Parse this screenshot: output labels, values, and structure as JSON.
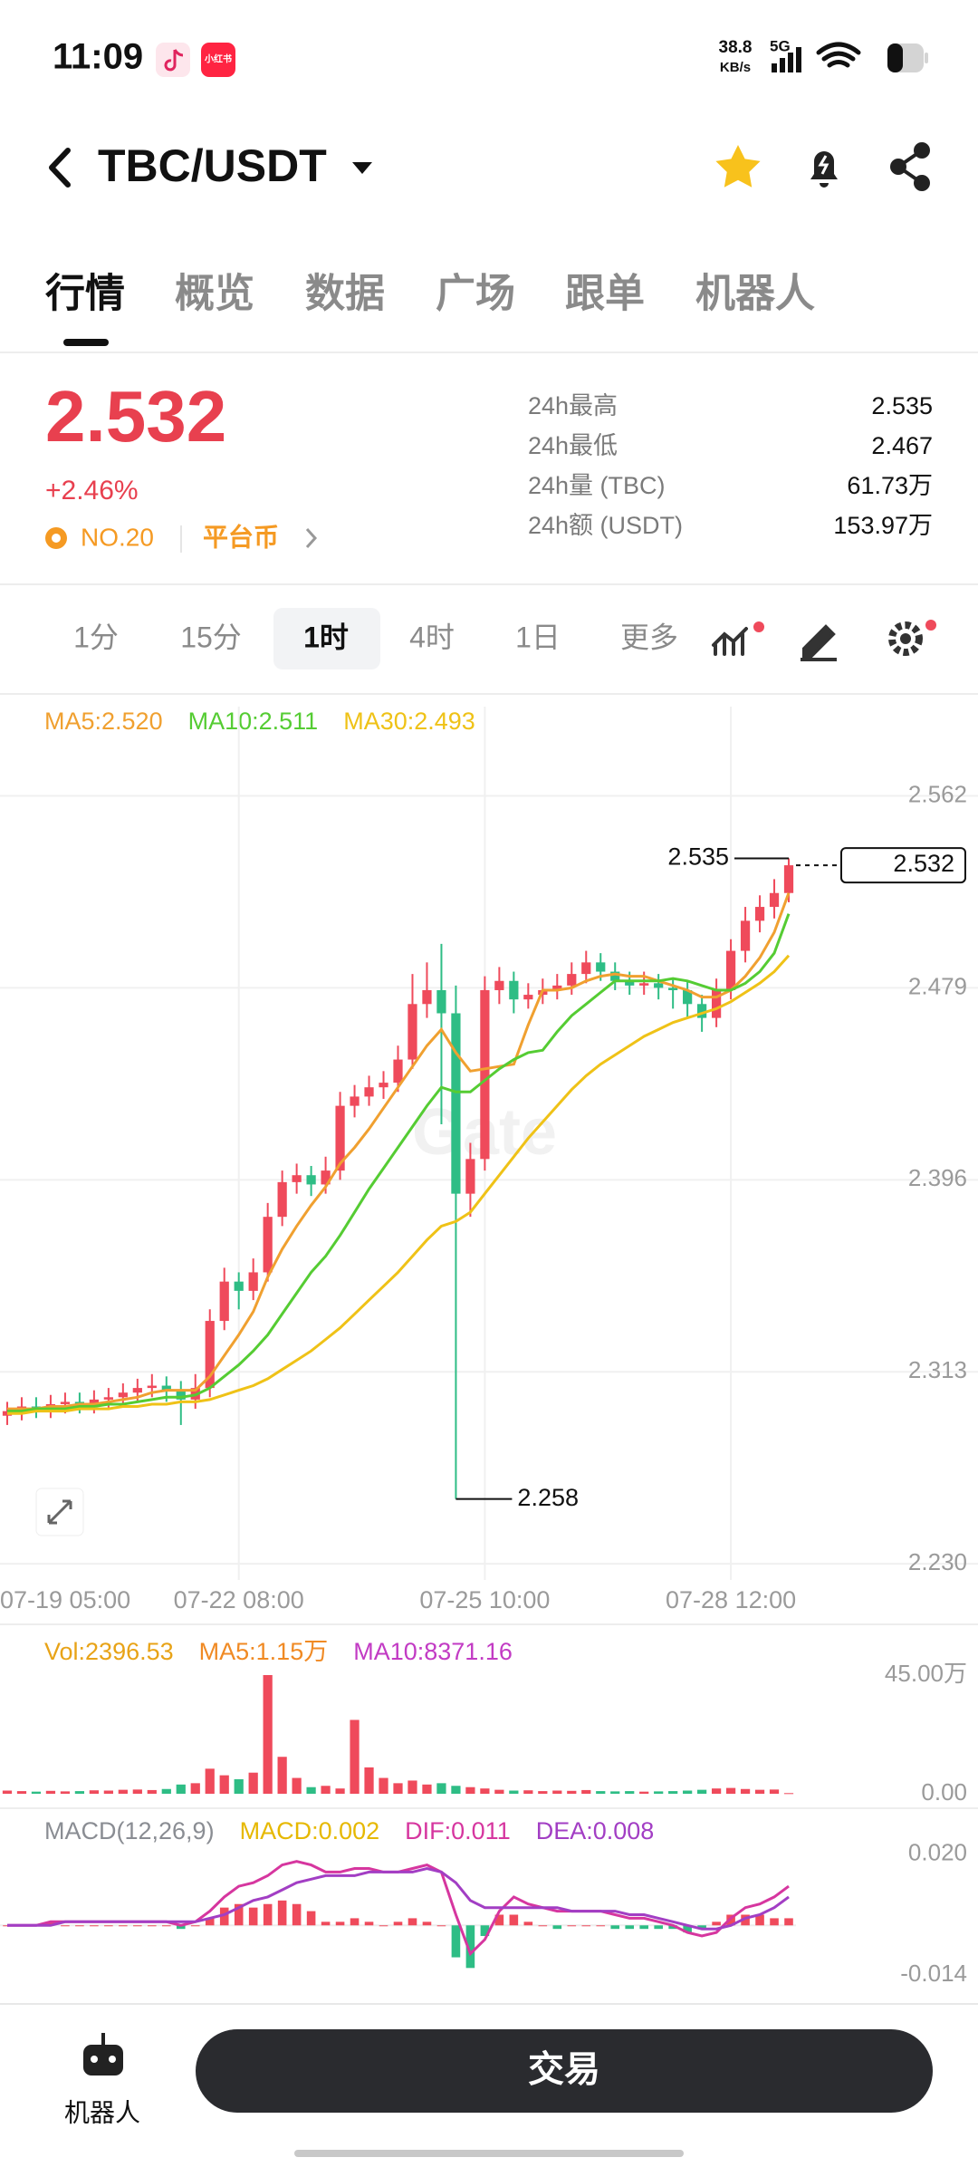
{
  "status_bar": {
    "time": "11:09",
    "app_badge": "小红书",
    "net_speed": "38.8",
    "net_unit": "KB/s",
    "network": "5G"
  },
  "header": {
    "pair": "TBC/USDT"
  },
  "tabs": [
    "行情",
    "概览",
    "数据",
    "广场",
    "跟单",
    "机器人"
  ],
  "ticker": {
    "price": "2.532",
    "change": "+2.46%",
    "rank": "NO.20",
    "tag": "平台币",
    "stats": [
      {
        "label": "24h最高",
        "value": "2.535"
      },
      {
        "label": "24h最低",
        "value": "2.467"
      },
      {
        "label": "24h量 (TBC)",
        "value": "61.73万"
      },
      {
        "label": "24h额 (USDT)",
        "value": "153.97万"
      }
    ]
  },
  "intervals": [
    "1分",
    "15分",
    "1时",
    "4时",
    "1日",
    "更多"
  ],
  "watermark": "Gate",
  "chart_data": [
    {
      "type": "candlestick",
      "categories": [
        "07-19 05:00",
        null,
        null,
        null,
        null,
        null,
        null,
        null,
        null,
        null,
        null,
        null,
        null,
        null,
        null,
        null,
        "07-22 08:00",
        null,
        null,
        null,
        null,
        null,
        null,
        null,
        null,
        null,
        null,
        null,
        null,
        null,
        null,
        null,
        null,
        "07-25 10:00",
        null,
        null,
        null,
        null,
        null,
        null,
        null,
        null,
        null,
        null,
        null,
        null,
        null,
        null,
        null,
        null,
        "07-28 12:00",
        null,
        null,
        null,
        null
      ],
      "ohlc": [
        [
          2.294,
          2.3,
          2.29,
          2.296
        ],
        [
          2.296,
          2.302,
          2.292,
          2.298
        ],
        [
          2.298,
          2.302,
          2.293,
          2.297
        ],
        [
          2.297,
          2.303,
          2.293,
          2.299
        ],
        [
          2.299,
          2.304,
          2.295,
          2.3
        ],
        [
          2.3,
          2.304,
          2.295,
          2.299
        ],
        [
          2.299,
          2.305,
          2.295,
          2.301
        ],
        [
          2.301,
          2.306,
          2.297,
          2.302
        ],
        [
          2.302,
          2.308,
          2.298,
          2.304
        ],
        [
          2.304,
          2.31,
          2.3,
          2.306
        ],
        [
          2.306,
          2.312,
          2.302,
          2.307
        ],
        [
          2.307,
          2.311,
          2.3,
          2.305
        ],
        [
          2.305,
          2.309,
          2.29,
          2.301
        ],
        [
          2.301,
          2.312,
          2.297,
          2.306
        ],
        [
          2.306,
          2.34,
          2.302,
          2.335
        ],
        [
          2.335,
          2.358,
          2.331,
          2.352
        ],
        [
          2.352,
          2.356,
          2.34,
          2.348
        ],
        [
          2.348,
          2.362,
          2.344,
          2.356
        ],
        [
          2.356,
          2.386,
          2.352,
          2.38
        ],
        [
          2.38,
          2.4,
          2.376,
          2.395
        ],
        [
          2.395,
          2.403,
          2.39,
          2.398
        ],
        [
          2.398,
          2.402,
          2.389,
          2.394
        ],
        [
          2.394,
          2.406,
          2.39,
          2.4
        ],
        [
          2.4,
          2.434,
          2.396,
          2.428
        ],
        [
          2.428,
          2.437,
          2.423,
          2.432
        ],
        [
          2.432,
          2.441,
          2.428,
          2.436
        ],
        [
          2.436,
          2.443,
          2.431,
          2.438
        ],
        [
          2.438,
          2.454,
          2.434,
          2.448
        ],
        [
          2.448,
          2.485,
          2.444,
          2.472
        ],
        [
          2.472,
          2.49,
          2.466,
          2.478
        ],
        [
          2.478,
          2.498,
          2.42,
          2.468
        ],
        [
          2.468,
          2.48,
          2.258,
          2.39
        ],
        [
          2.39,
          2.412,
          2.38,
          2.405
        ],
        [
          2.405,
          2.484,
          2.4,
          2.478
        ],
        [
          2.478,
          2.488,
          2.472,
          2.482
        ],
        [
          2.482,
          2.486,
          2.468,
          2.474
        ],
        [
          2.474,
          2.481,
          2.47,
          2.476
        ],
        [
          2.476,
          2.483,
          2.472,
          2.478
        ],
        [
          2.478,
          2.485,
          2.474,
          2.48
        ],
        [
          2.48,
          2.49,
          2.476,
          2.485
        ],
        [
          2.485,
          2.495,
          2.481,
          2.49
        ],
        [
          2.49,
          2.494,
          2.482,
          2.486
        ],
        [
          2.486,
          2.49,
          2.478,
          2.482
        ],
        [
          2.482,
          2.486,
          2.476,
          2.48
        ],
        [
          2.48,
          2.486,
          2.476,
          2.481
        ],
        [
          2.481,
          2.485,
          2.474,
          2.479
        ],
        [
          2.479,
          2.483,
          2.47,
          2.478
        ],
        [
          2.478,
          2.482,
          2.466,
          2.472
        ],
        [
          2.472,
          2.476,
          2.46,
          2.466
        ],
        [
          2.466,
          2.483,
          2.462,
          2.478
        ],
        [
          2.478,
          2.5,
          2.474,
          2.495
        ],
        [
          2.495,
          2.514,
          2.49,
          2.508
        ],
        [
          2.508,
          2.519,
          2.503,
          2.514
        ],
        [
          2.514,
          2.526,
          2.509,
          2.52
        ],
        [
          2.52,
          2.535,
          2.516,
          2.532
        ]
      ],
      "up_color": "#ef4a5b",
      "down_color": "#2ebd85",
      "series": [
        {
          "name": "MA5:2.520",
          "color": "#f0a030",
          "values": [
            2.297,
            2.297,
            2.297,
            2.298,
            2.298,
            2.299,
            2.299,
            2.3,
            2.301,
            2.302,
            2.304,
            2.305,
            2.305,
            2.305,
            2.311,
            2.32,
            2.329,
            2.339,
            2.354,
            2.366,
            2.376,
            2.385,
            2.393,
            2.403,
            2.41,
            2.418,
            2.427,
            2.436,
            2.445,
            2.454,
            2.461,
            2.451,
            2.443,
            2.444,
            2.445,
            2.446,
            2.463,
            2.478,
            2.478,
            2.479,
            2.482,
            2.484,
            2.485,
            2.484,
            2.484,
            2.482,
            2.48,
            2.478,
            2.475,
            2.475,
            2.478,
            2.484,
            2.492,
            2.503,
            2.52
          ]
        },
        {
          "name": "MA10:2.511",
          "color": "#55cc33",
          "values": [
            2.296,
            2.296,
            2.297,
            2.297,
            2.297,
            2.298,
            2.298,
            2.299,
            2.299,
            2.3,
            2.301,
            2.302,
            2.302,
            2.303,
            2.306,
            2.311,
            2.316,
            2.322,
            2.329,
            2.338,
            2.347,
            2.356,
            2.363,
            2.372,
            2.382,
            2.392,
            2.401,
            2.41,
            2.419,
            2.428,
            2.436,
            2.434,
            2.434,
            2.439,
            2.444,
            2.448,
            2.451,
            2.452,
            2.46,
            2.467,
            2.472,
            2.477,
            2.482,
            2.482,
            2.482,
            2.482,
            2.483,
            2.482,
            2.48,
            2.478,
            2.478,
            2.481,
            2.486,
            2.494,
            2.511
          ]
        },
        {
          "name": "MA30:2.493",
          "color": "#efc217",
          "values": [
            2.295,
            2.295,
            2.296,
            2.296,
            2.296,
            2.297,
            2.297,
            2.297,
            2.298,
            2.298,
            2.299,
            2.299,
            2.3,
            2.3,
            2.301,
            2.303,
            2.305,
            2.307,
            2.31,
            2.314,
            2.318,
            2.322,
            2.327,
            2.332,
            2.338,
            2.344,
            2.35,
            2.356,
            2.363,
            2.37,
            2.376,
            2.378,
            2.382,
            2.39,
            2.398,
            2.406,
            2.414,
            2.421,
            2.428,
            2.435,
            2.441,
            2.446,
            2.45,
            2.454,
            2.458,
            2.461,
            2.464,
            2.466,
            2.468,
            2.47,
            2.473,
            2.477,
            2.481,
            2.486,
            2.493
          ]
        }
      ],
      "ylim": [
        2.223,
        2.581
      ],
      "yticks": [
        2.562,
        2.479,
        2.396,
        2.313,
        {
          "value": 2.23,
          "label": "2.230"
        }
      ],
      "grid": true,
      "high": 2.535,
      "low": 2.258,
      "last": 2.532
    },
    {
      "type": "bar",
      "legend": [
        {
          "text": "Vol:2396.53",
          "color": "#e8a317"
        },
        {
          "text": "MA5:1.15万",
          "color": "#f08a24"
        },
        {
          "text": "MA10:8371.16",
          "color": "#c23bc4"
        }
      ],
      "values": [
        1.2,
        1.0,
        0.8,
        1.1,
        0.9,
        1.0,
        1.3,
        1.2,
        1.5,
        1.6,
        1.4,
        1.8,
        3.5,
        4.0,
        9.5,
        7.0,
        5.5,
        8.0,
        45.0,
        14.0,
        6.0,
        2.5,
        3.0,
        2.0,
        28.0,
        10.0,
        6.0,
        4.0,
        5.0,
        3.5,
        4.0,
        3.0,
        2.5,
        2.0,
        1.5,
        1.2,
        1.3,
        1.0,
        1.2,
        1.1,
        1.4,
        1.0,
        0.9,
        1.0,
        0.8,
        0.9,
        1.0,
        1.2,
        1.5,
        2.0,
        2.2,
        1.8,
        1.5,
        1.6,
        0.24
      ],
      "ylim": [
        0,
        45
      ],
      "yticks": [
        {
          "value": 45,
          "label": "45.00万"
        },
        {
          "value": 0,
          "label": "0.00"
        }
      ]
    },
    {
      "type": "macd",
      "legend": [
        {
          "text": "MACD(12,26,9)",
          "color": "#8a8d93"
        },
        {
          "text": "MACD:0.002",
          "color": "#e6b800"
        }
      ],
      "values": [
        0,
        0,
        0,
        0.001,
        0,
        0,
        0,
        0,
        0,
        0,
        0,
        0,
        -0.001,
        0,
        0.002,
        0.005,
        0.006,
        0.005,
        0.006,
        0.007,
        0.006,
        0.004,
        0.001,
        0.001,
        0.002,
        0.001,
        0,
        0.001,
        0.002,
        0.001,
        0,
        -0.009,
        -0.012,
        -0.003,
        0.003,
        0.003,
        0.001,
        0,
        -0.001,
        0,
        0,
        0,
        -0.001,
        -0.001,
        -0.001,
        -0.001,
        -0.001,
        -0.002,
        -0.001,
        0.001,
        0.003,
        0.003,
        0.003,
        0.002,
        0.002
      ],
      "series": [
        {
          "name": "DIF:0.011",
          "color": "#d6369f",
          "values": [
            0,
            0,
            0,
            0.001,
            0.001,
            0.001,
            0.001,
            0.001,
            0.001,
            0.001,
            0.001,
            0.001,
            0,
            0.001,
            0.004,
            0.008,
            0.011,
            0.012,
            0.014,
            0.017,
            0.018,
            0.017,
            0.015,
            0.015,
            0.016,
            0.016,
            0.015,
            0.015,
            0.016,
            0.017,
            0.015,
            0.003,
            -0.008,
            -0.004,
            0.004,
            0.008,
            0.006,
            0.005,
            0.004,
            0.004,
            0.004,
            0.004,
            0.003,
            0.002,
            0.002,
            0.001,
            0,
            -0.002,
            -0.003,
            -0.002,
            0.002,
            0.005,
            0.006,
            0.008,
            0.011
          ]
        },
        {
          "name": "DEA:0.008",
          "color": "#a23ec4",
          "values": [
            0,
            0,
            0,
            0,
            0.001,
            0.001,
            0.001,
            0.001,
            0.001,
            0.001,
            0.001,
            0.001,
            0.001,
            0.001,
            0.002,
            0.003,
            0.005,
            0.007,
            0.008,
            0.01,
            0.012,
            0.013,
            0.014,
            0.014,
            0.014,
            0.015,
            0.015,
            0.015,
            0.015,
            0.016,
            0.015,
            0.012,
            0.007,
            0.005,
            0.005,
            0.005,
            0.005,
            0.005,
            0.005,
            0.004,
            0.004,
            0.004,
            0.004,
            0.003,
            0.003,
            0.002,
            0.001,
            0,
            -0.001,
            -0.001,
            0,
            0.002,
            0.003,
            0.005,
            0.008
          ]
        }
      ],
      "ylim": [
        -0.016,
        0.022
      ],
      "yticks": [
        {
          "value": 0.02,
          "label": "0.020"
        },
        -0.014
      ]
    }
  ],
  "bottom_bar": {
    "robot": "机器人",
    "trade": "交易"
  }
}
